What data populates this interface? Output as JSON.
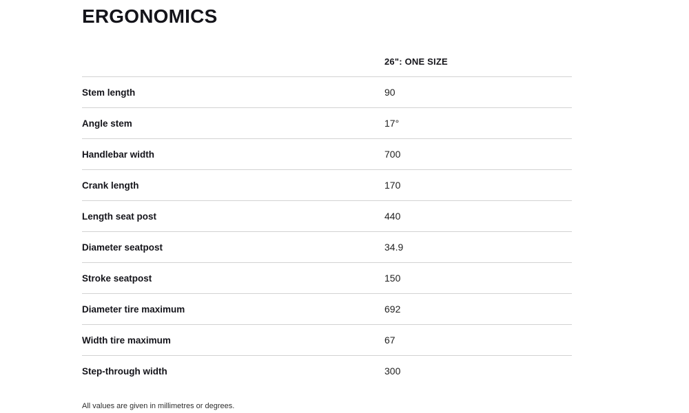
{
  "section": {
    "title": "ERGONOMICS",
    "footnote": "All values are given in millimetres or degrees."
  },
  "table": {
    "size_header": "26\": ONE SIZE",
    "rows": [
      {
        "label": "Stem length",
        "value": "90"
      },
      {
        "label": "Angle stem",
        "value": "17°"
      },
      {
        "label": "Handlebar width",
        "value": "700"
      },
      {
        "label": "Crank length",
        "value": "170"
      },
      {
        "label": "Length seat post",
        "value": "440"
      },
      {
        "label": "Diameter seatpost",
        "value": "34.9"
      },
      {
        "label": "Stroke seatpost",
        "value": "150"
      },
      {
        "label": "Diameter tire maximum",
        "value": "692"
      },
      {
        "label": "Width tire maximum",
        "value": "67"
      },
      {
        "label": "Step-through width",
        "value": "300"
      }
    ]
  },
  "colors": {
    "background": "#ffffff",
    "text": "#14141a",
    "value_text": "#222222",
    "divider": "#d2d2d2"
  }
}
